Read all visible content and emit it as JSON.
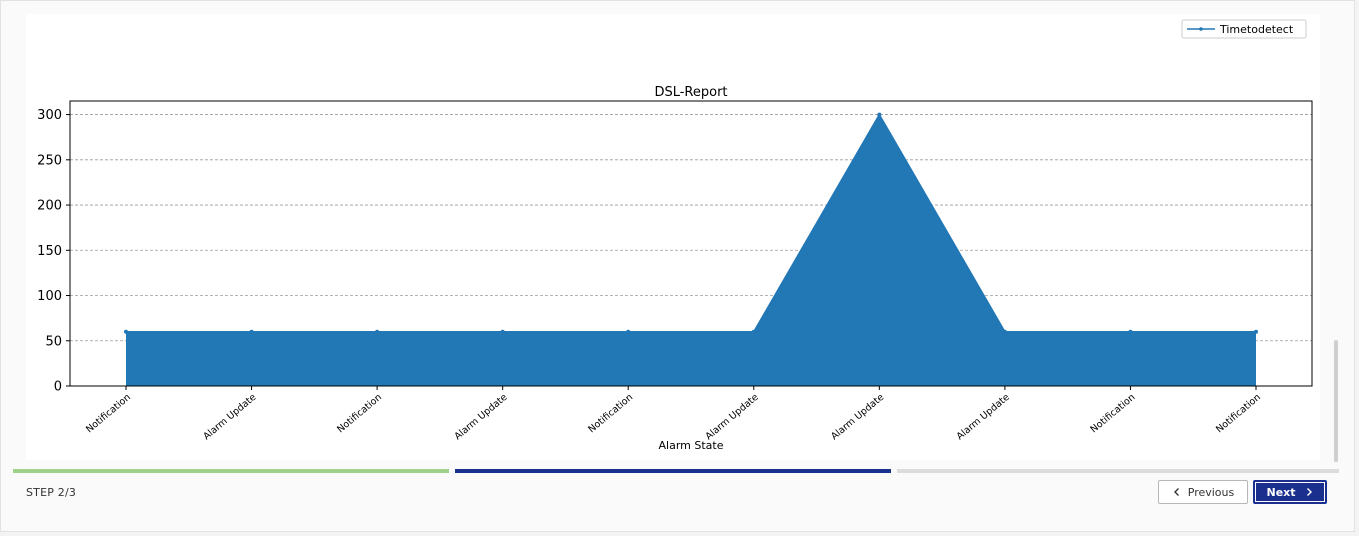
{
  "colors": {
    "series": "#2277b5",
    "progress_done": "#9fd08c",
    "progress_active": "#1b2f8f",
    "progress_todo": "#dcdcdc",
    "next_button": "#1b2f8f"
  },
  "chart_data": {
    "type": "area",
    "title": "DSL-Report",
    "xlabel": "Alarm State",
    "ylabel": "",
    "categories": [
      "Notification",
      "Alarm Update",
      "Notification",
      "Alarm Update",
      "Notification",
      "Alarm Update",
      "Alarm Update",
      "Alarm Update",
      "Notification",
      "Notification"
    ],
    "series": [
      {
        "name": "Timetodetect",
        "values": [
          60,
          60,
          60,
          60,
          60,
          60,
          300,
          60,
          60,
          60
        ]
      }
    ],
    "ylim": [
      0,
      315
    ],
    "yticks": [
      0,
      50,
      100,
      150,
      200,
      250,
      300
    ],
    "grid": "horizontal dashed",
    "legend_position": "top-right"
  },
  "footer": {
    "step_label": "STEP 2/3",
    "previous_label": "Previous",
    "next_label": "Next"
  }
}
